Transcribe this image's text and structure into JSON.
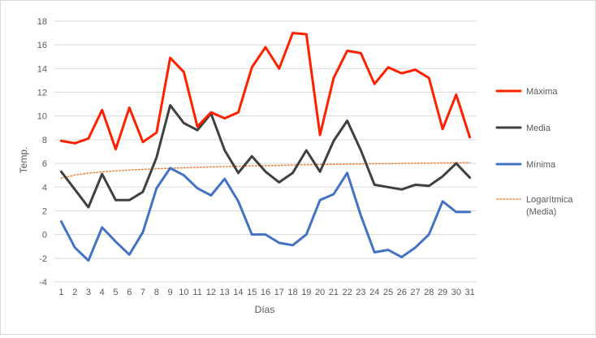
{
  "chart_data": {
    "type": "line",
    "xlabel": "Días",
    "ylabel": "Temp.",
    "ylim": [
      -4,
      18
    ],
    "ytick_step": 2,
    "grid": "horizontal",
    "legend_position": "right",
    "x": [
      1,
      2,
      3,
      4,
      5,
      6,
      7,
      8,
      9,
      10,
      11,
      12,
      13,
      14,
      15,
      16,
      17,
      18,
      19,
      20,
      21,
      22,
      23,
      24,
      25,
      26,
      27,
      28,
      29,
      30,
      31
    ],
    "series": [
      {
        "name": "Máxima",
        "color": "#ff2000",
        "values": [
          7.9,
          7.7,
          8.1,
          10.5,
          7.2,
          10.7,
          7.8,
          8.6,
          14.9,
          13.7,
          9.1,
          10.3,
          9.8,
          10.3,
          14.1,
          15.8,
          14.0,
          17.0,
          16.9,
          8.4,
          13.2,
          15.5,
          15.3,
          12.7,
          14.1,
          13.6,
          13.9,
          13.2,
          8.9,
          11.8,
          8.2
        ]
      },
      {
        "name": "Media",
        "color": "#404040",
        "values": [
          5.3,
          3.8,
          2.3,
          5.1,
          2.9,
          2.9,
          3.6,
          6.5,
          10.9,
          9.4,
          8.8,
          10.2,
          7.1,
          5.2,
          6.6,
          5.3,
          4.4,
          5.2,
          7.1,
          5.3,
          7.9,
          9.6,
          7.1,
          4.2,
          4.0,
          3.8,
          4.2,
          4.1,
          4.9,
          6.0,
          4.8
        ]
      },
      {
        "name": "Mínima",
        "color": "#4472c4",
        "values": [
          1.1,
          -1.1,
          -2.2,
          0.6,
          -0.6,
          -1.7,
          0.2,
          3.9,
          5.6,
          5.0,
          3.9,
          3.3,
          4.7,
          2.8,
          0.0,
          0.0,
          -0.7,
          -0.9,
          0.0,
          2.9,
          3.4,
          5.2,
          1.6,
          -1.5,
          -1.3,
          -1.9,
          -1.1,
          0.0,
          2.8,
          1.9,
          1.9
        ]
      },
      {
        "name": "Logarítmica (Media)",
        "name_lines": [
          "Logarítmica",
          "(Media)"
        ],
        "color": "#ed7d31",
        "style": "dotted",
        "trendline_of": "Media",
        "values": [
          4.75,
          5.02,
          5.17,
          5.28,
          5.37,
          5.44,
          5.5,
          5.55,
          5.59,
          5.63,
          5.67,
          5.7,
          5.73,
          5.76,
          5.79,
          5.81,
          5.83,
          5.86,
          5.88,
          5.9,
          5.92,
          5.93,
          5.95,
          5.97,
          5.98,
          6.0,
          6.01,
          6.03,
          6.04,
          6.05,
          6.07
        ]
      }
    ]
  }
}
